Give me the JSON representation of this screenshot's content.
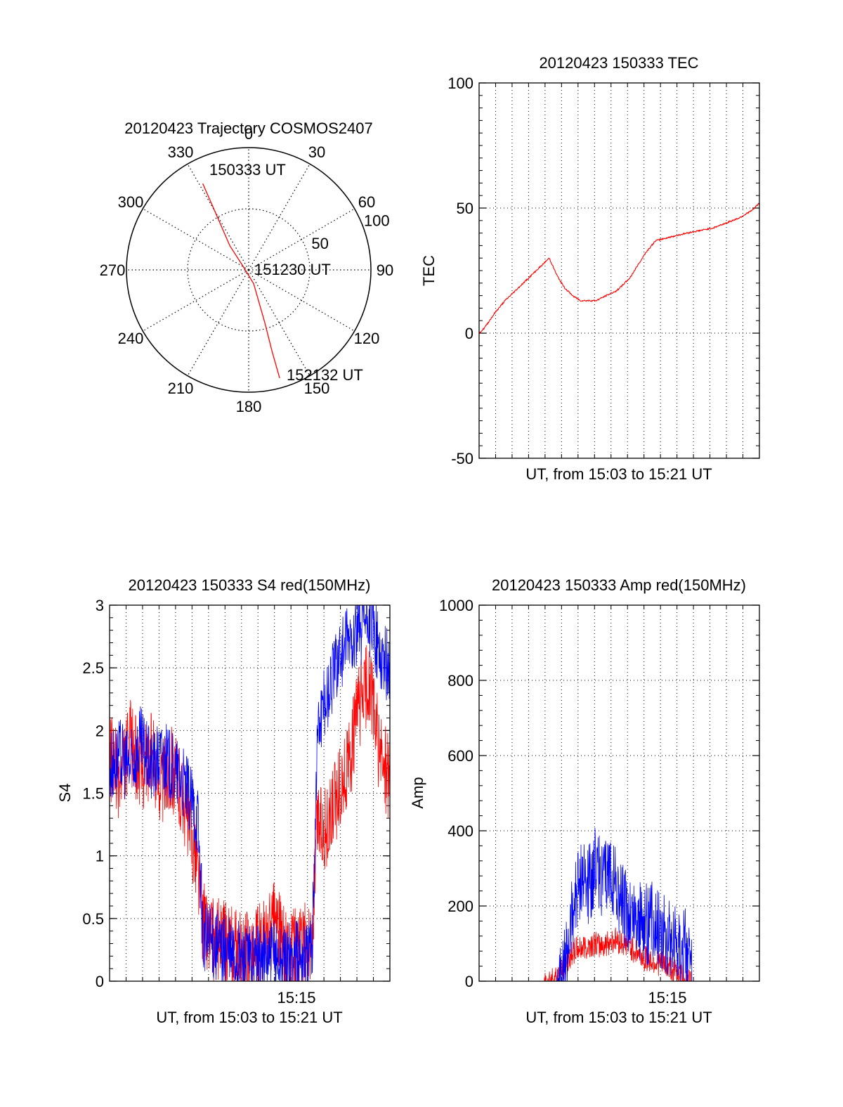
{
  "chart_data": [
    {
      "type": "polar",
      "title": "20120423 Trajectory COSMOS2407",
      "azimuth_labels": [
        "0",
        "30",
        "60",
        "90",
        "120",
        "150",
        "180",
        "210",
        "240",
        "270",
        "300",
        "330"
      ],
      "azimuth_values": [
        0,
        30,
        60,
        90,
        120,
        150,
        180,
        210,
        240,
        270,
        300,
        330
      ],
      "radial_labels": [
        "50",
        "100"
      ],
      "radial_values": [
        50,
        100
      ],
      "rlim": [
        0,
        100
      ],
      "grid": true,
      "series_color": "#ff0000",
      "trajectory": [
        {
          "az": 332,
          "r": 80
        },
        {
          "az": 330,
          "r": 55
        },
        {
          "az": 322,
          "r": 25
        },
        {
          "az": 300,
          "r": 5
        },
        {
          "az": 160,
          "r": 12
        },
        {
          "az": 163,
          "r": 45
        },
        {
          "az": 164,
          "r": 70
        },
        {
          "az": 164,
          "r": 92
        }
      ],
      "annotations": [
        "150333 UT",
        "151230 UT",
        "152132 UT"
      ]
    },
    {
      "type": "line",
      "title": "20120423 150333 TEC",
      "xlabel": "UT, from 15:03 to 15:21 UT",
      "ylabel": "TEC",
      "xlim": [
        0,
        1079
      ],
      "ylim": [
        -50,
        100
      ],
      "yticks": [
        "-50",
        "0",
        "50",
        "100"
      ],
      "ytick_values": [
        -50,
        0,
        50,
        100
      ],
      "grid": true,
      "series": [
        {
          "color": "#ff0000",
          "x": [
            0,
            20,
            60,
            100,
            150,
            190,
            210,
            240,
            270,
            300,
            330,
            360,
            390,
            420,
            450,
            490,
            530,
            580,
            610,
            640,
            680,
            720,
            760,
            800,
            850,
            900,
            950,
            1000,
            1050,
            1079
          ],
          "y": [
            0,
            2,
            8,
            13,
            18,
            22,
            24,
            27,
            30,
            23,
            18,
            15,
            13,
            13,
            13,
            15,
            17,
            22,
            27,
            32,
            37,
            38,
            39,
            40,
            41,
            42,
            44,
            46,
            49,
            52
          ]
        }
      ]
    },
    {
      "type": "line",
      "title": "20120423 150333 S4 red(150MHz)",
      "xlabel": "UT, from 15:03 to 15:21 UT",
      "ylabel": "S4",
      "xlim": [
        0,
        1079
      ],
      "ylim": [
        0,
        3
      ],
      "xtick_label": "15:15",
      "xtick_value": 720,
      "yticks": [
        "0",
        "0.5",
        "1",
        "1.5",
        "2",
        "2.5",
        "3"
      ],
      "ytick_values": [
        0,
        0.5,
        1,
        1.5,
        2,
        2.5,
        3
      ],
      "grid": true,
      "series": [
        {
          "color": "#ff0000",
          "x": [
            0,
            40,
            80,
            120,
            160,
            200,
            240,
            280,
            320,
            340,
            360,
            400,
            440,
            480,
            520,
            560,
            600,
            640,
            680,
            720,
            760,
            780,
            800,
            840,
            880,
            920,
            960,
            1000,
            1040,
            1079
          ],
          "y": [
            1.8,
            1.6,
            1.9,
            1.7,
            1.8,
            1.6,
            1.7,
            1.5,
            1.1,
            0.9,
            0.45,
            0.35,
            0.3,
            0.25,
            0.2,
            0.25,
            0.35,
            0.5,
            0.2,
            0.25,
            0.3,
            0.3,
            1.3,
            1.2,
            1.5,
            1.7,
            2.2,
            2.4,
            1.8,
            1.6
          ],
          "noise": 0.35
        },
        {
          "color": "#0000ff",
          "x": [
            0,
            40,
            80,
            120,
            160,
            200,
            240,
            280,
            320,
            340,
            360,
            400,
            440,
            480,
            520,
            560,
            600,
            640,
            680,
            720,
            760,
            780,
            800,
            840,
            880,
            920,
            960,
            1000,
            1040,
            1079
          ],
          "y": [
            1.7,
            1.8,
            1.7,
            1.9,
            1.7,
            1.8,
            1.7,
            1.6,
            1.4,
            1.3,
            0.35,
            0.3,
            0.25,
            0.2,
            0.18,
            0.15,
            0.18,
            0.2,
            0.15,
            0.2,
            0.22,
            0.25,
            2.0,
            2.3,
            2.6,
            2.7,
            2.8,
            2.9,
            2.6,
            2.5
          ],
          "noise": 0.3
        }
      ]
    },
    {
      "type": "line",
      "title": "20120423 150333 Amp red(150MHz)",
      "xlabel": "UT, from 15:03 to 15:21 UT",
      "ylabel": "Amp",
      "xlim": [
        0,
        1079
      ],
      "ylim": [
        0,
        1000
      ],
      "xtick_label": "15:15",
      "xtick_value": 720,
      "yticks": [
        "0",
        "200",
        "400",
        "600",
        "800",
        "1000"
      ],
      "ytick_values": [
        0,
        200,
        400,
        600,
        800,
        1000
      ],
      "grid": true,
      "series": [
        {
          "color": "#ff0000",
          "x": [
            0,
            250,
            300,
            330,
            360,
            400,
            440,
            480,
            520,
            560,
            600,
            640,
            680,
            720,
            760,
            800,
            820,
            1079
          ],
          "y": [
            0,
            0,
            10,
            40,
            80,
            90,
            100,
            95,
            110,
            100,
            80,
            60,
            50,
            40,
            25,
            10,
            0,
            0
          ],
          "noise": 35
        },
        {
          "color": "#0000ff",
          "x": [
            0,
            300,
            330,
            360,
            390,
            420,
            450,
            480,
            510,
            540,
            570,
            600,
            640,
            680,
            720,
            760,
            800,
            820,
            1079
          ],
          "y": [
            0,
            0,
            30,
            180,
            280,
            250,
            320,
            260,
            300,
            220,
            180,
            170,
            150,
            160,
            120,
            110,
            80,
            0,
            0
          ],
          "noise": 110
        }
      ]
    }
  ]
}
